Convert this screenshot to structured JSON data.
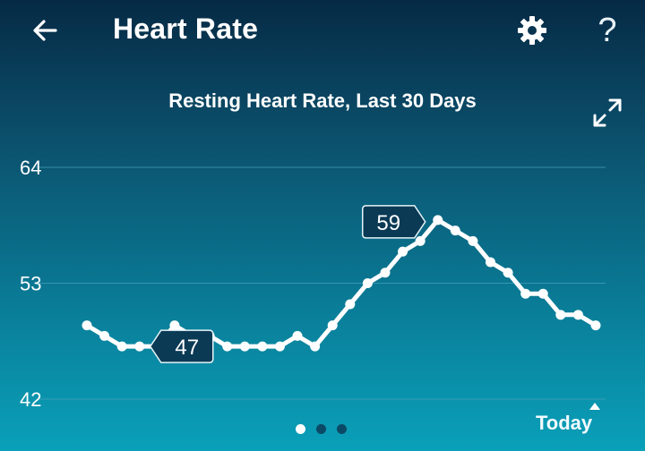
{
  "header": {
    "title": "Heart Rate"
  },
  "icons": {
    "back": "arrow-left-icon",
    "settings": "gear-icon",
    "help": "question-mark-icon",
    "expand": "expand-icon"
  },
  "help_label": "?",
  "pager": {
    "pages": 3,
    "active": 0
  },
  "footer": {
    "today_label": "Today"
  },
  "colors": {
    "line": "#ffffff",
    "callout_bg": "#0b3a55",
    "grid": "#4aa3bd"
  },
  "chart_data": {
    "type": "line",
    "title": "Resting Heart Rate, Last 30 Days",
    "xlabel": "",
    "ylabel": "",
    "ylim": [
      42,
      64
    ],
    "yticks": [
      "64",
      "53",
      "42"
    ],
    "grid": true,
    "x_end_label": "Today",
    "values": [
      49,
      48,
      47,
      47,
      47,
      49,
      48,
      48,
      47,
      47,
      47,
      47,
      48,
      47,
      49,
      51,
      53,
      54,
      56,
      57,
      59,
      58,
      57,
      55,
      54,
      52,
      52,
      50,
      50,
      49
    ],
    "callouts": [
      {
        "index": 3,
        "label": "47",
        "side": "right"
      },
      {
        "index": 20,
        "label": "59",
        "side": "left"
      }
    ]
  }
}
